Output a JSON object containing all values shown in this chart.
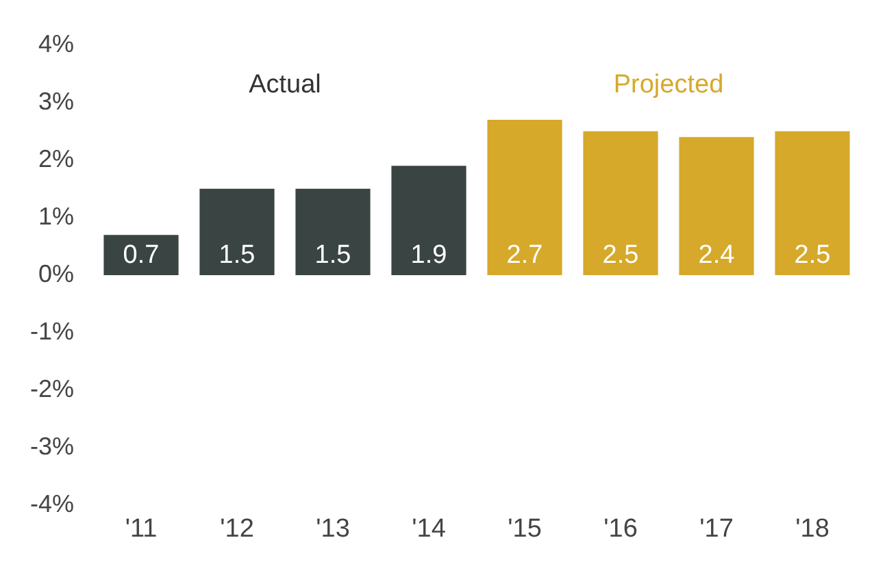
{
  "chart_data": {
    "type": "bar",
    "categories": [
      "'11",
      "'12",
      "'13",
      "'14",
      "'15",
      "'16",
      "'17",
      "'18"
    ],
    "series": [
      {
        "name": "Actual",
        "color": "#3a4442",
        "values": [
          0.7,
          1.5,
          1.5,
          1.9,
          null,
          null,
          null,
          null
        ]
      },
      {
        "name": "Projected",
        "color": "#d6a92a",
        "values": [
          null,
          null,
          null,
          null,
          2.7,
          2.5,
          2.4,
          2.5
        ]
      }
    ],
    "ylim": [
      -4,
      4
    ],
    "yticks": [
      {
        "value": -4,
        "label": "-4%"
      },
      {
        "value": -3,
        "label": "-3%"
      },
      {
        "value": -2,
        "label": "-2%"
      },
      {
        "value": -1,
        "label": "-1%"
      },
      {
        "value": 0,
        "label": "0%"
      },
      {
        "value": 1,
        "label": "1%"
      },
      {
        "value": 2,
        "label": "2%"
      },
      {
        "value": 3,
        "label": "3%"
      },
      {
        "value": 4,
        "label": "4%"
      }
    ],
    "data_labels": true,
    "grid": false,
    "legend": false
  }
}
